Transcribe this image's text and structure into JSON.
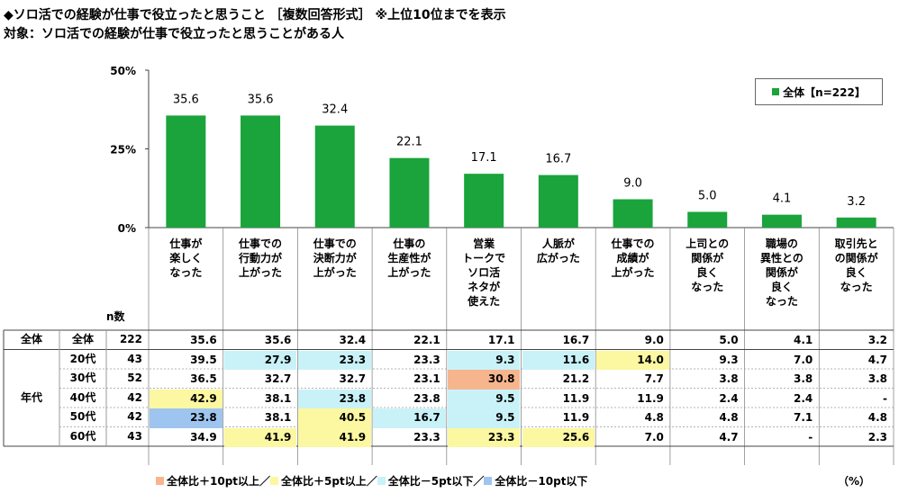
{
  "title": "◆ソロ活での経験が仕事で役立ったと思うこと ［複数回答形式］ ※上位10位までを表示",
  "subtitle": "対象：ソロ活での経験が仕事で役立ったと思うことがある人",
  "colors": {
    "bar": "#1aa43b",
    "plus10": "#f7b58e",
    "plus5": "#fcf7a1",
    "minus5": "#c9f2f8",
    "minus10": "#9ec5ef"
  },
  "chart_data": {
    "type": "bar",
    "title": "ソロ活での経験が仕事で役立ったと思うこと",
    "ylim": [
      0,
      50
    ],
    "yticks": [
      "0%",
      "25%",
      "50%"
    ],
    "ytick_values": [
      0,
      25,
      50
    ],
    "legend": "全体【n=222】",
    "categories": [
      "仕事が\n楽しく\nなった",
      "仕事での\n行動力が\n上がった",
      "仕事での\n決断力が\n上がった",
      "仕事の\n生産性が\n上がった",
      "営業\nトークで\nソロ活\nネタが\n使えた",
      "人脈が\n広がった",
      "仕事での\n成績が\n上がった",
      "上司との\n関係が\n良く\nなった",
      "職場の\n異性との\n関係が\n良く\nなった",
      "取引先と\nの関係が\n良く\nなった"
    ],
    "values": [
      35.6,
      35.6,
      32.4,
      22.1,
      17.1,
      16.7,
      9.0,
      5.0,
      4.1,
      3.2
    ],
    "value_labels": [
      "35.6",
      "35.6",
      "32.4",
      "22.1",
      "17.1",
      "16.7",
      "9.0",
      "5.0",
      "4.1",
      "3.2"
    ]
  },
  "table": {
    "n_header": "n数",
    "group_total": "全体",
    "group_age": "年代",
    "rows": [
      {
        "label": "全体",
        "n": "222",
        "values": [
          "35.6",
          "35.6",
          "32.4",
          "22.1",
          "17.1",
          "16.7",
          "9.0",
          "5.0",
          "4.1",
          "3.2"
        ],
        "hl": [
          "",
          "",
          "",
          "",
          "",
          "",
          "",
          "",
          "",
          ""
        ]
      },
      {
        "label": "20代",
        "n": "43",
        "values": [
          "39.5",
          "27.9",
          "23.3",
          "23.3",
          "9.3",
          "11.6",
          "14.0",
          "9.3",
          "7.0",
          "4.7"
        ],
        "hl": [
          "",
          "m5",
          "m5",
          "",
          "m5",
          "m5",
          "p5",
          "",
          "",
          ""
        ]
      },
      {
        "label": "30代",
        "n": "52",
        "values": [
          "36.5",
          "32.7",
          "32.7",
          "23.1",
          "30.8",
          "21.2",
          "7.7",
          "3.8",
          "3.8",
          "3.8"
        ],
        "hl": [
          "",
          "",
          "",
          "",
          "p10",
          "",
          "",
          "",
          "",
          ""
        ]
      },
      {
        "label": "40代",
        "n": "42",
        "values": [
          "42.9",
          "38.1",
          "23.8",
          "23.8",
          "9.5",
          "11.9",
          "11.9",
          "2.4",
          "2.4",
          "-"
        ],
        "hl": [
          "p5",
          "",
          "m5",
          "",
          "m5",
          "",
          "",
          "",
          "",
          ""
        ]
      },
      {
        "label": "50代",
        "n": "42",
        "values": [
          "23.8",
          "38.1",
          "40.5",
          "16.7",
          "9.5",
          "11.9",
          "4.8",
          "4.8",
          "7.1",
          "4.8"
        ],
        "hl": [
          "m10",
          "",
          "p5",
          "m5",
          "m5",
          "",
          "",
          "",
          "",
          ""
        ]
      },
      {
        "label": "60代",
        "n": "43",
        "values": [
          "34.9",
          "41.9",
          "41.9",
          "23.3",
          "23.3",
          "25.6",
          "7.0",
          "4.7",
          "-",
          "2.3"
        ],
        "hl": [
          "",
          "p5",
          "p5",
          "",
          "p5",
          "p5",
          "",
          "",
          "",
          ""
        ]
      }
    ]
  },
  "legend_bottom": {
    "plus10": "全体比＋10pt以上／",
    "plus5": "全体比＋5pt以上／",
    "minus5": "全体比－5pt以下／",
    "minus10": "全体比－10pt以下"
  },
  "unit": "（%）"
}
